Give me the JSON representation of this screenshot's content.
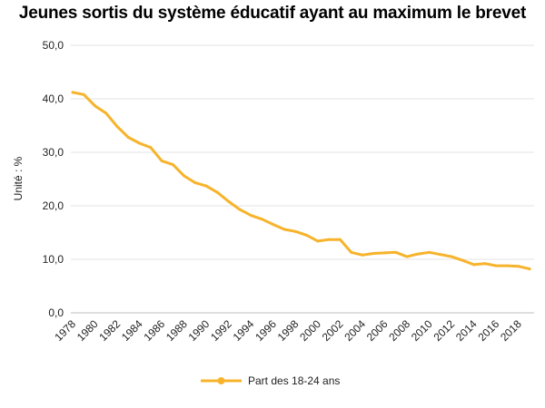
{
  "chart_data": {
    "type": "line",
    "title": "Jeunes sortis du système éducatif ayant au maximum le brevet",
    "ylabel": "Unité : %",
    "xlabel": "",
    "ylim": [
      0,
      50
    ],
    "yticks": [
      0,
      10,
      20,
      30,
      40,
      50
    ],
    "ytick_labels": [
      "0,0",
      "10,0",
      "20,0",
      "30,0",
      "40,0",
      "50,0"
    ],
    "xtick_labels": [
      "1978",
      "1980",
      "1982",
      "1984",
      "1986",
      "1988",
      "1990",
      "1992",
      "1994",
      "1996",
      "1998",
      "2000",
      "2002",
      "2004",
      "2006",
      "2008",
      "2010",
      "2012",
      "2014",
      "2016",
      "2018"
    ],
    "grid": true,
    "legend_position": "bottom",
    "color": "#F7B32B",
    "x": [
      1978,
      1979,
      1980,
      1981,
      1982,
      1983,
      1984,
      1985,
      1986,
      1987,
      1988,
      1989,
      1990,
      1991,
      1992,
      1993,
      1994,
      1995,
      1996,
      1997,
      1998,
      1999,
      2000,
      2001,
      2002,
      2003,
      2004,
      2005,
      2006,
      2007,
      2008,
      2009,
      2010,
      2011,
      2012,
      2013,
      2014,
      2015,
      2016,
      2017,
      2018,
      2019
    ],
    "series": [
      {
        "name": "Part des 18-24 ans",
        "values": [
          41.2,
          40.8,
          38.7,
          37.3,
          34.8,
          32.8,
          31.7,
          30.9,
          28.4,
          27.7,
          25.6,
          24.3,
          23.7,
          22.5,
          20.8,
          19.3,
          18.2,
          17.5,
          16.5,
          15.6,
          15.2,
          14.5,
          13.4,
          13.7,
          13.7,
          11.3,
          10.8,
          11.1,
          11.2,
          11.3,
          10.5,
          11.0,
          11.3,
          10.9,
          10.5,
          9.8,
          9.0,
          9.2,
          8.8,
          8.8,
          8.7,
          8.2
        ]
      }
    ]
  }
}
